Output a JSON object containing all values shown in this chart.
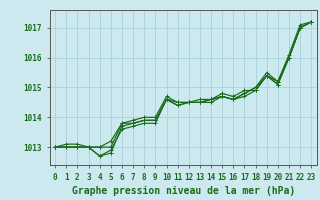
{
  "title": "Graphe pression niveau de la mer (hPa)",
  "xlabel": "Graphe pression niveau de la mer (hPa)",
  "x_ticks": [
    0,
    1,
    2,
    3,
    4,
    5,
    6,
    7,
    8,
    9,
    10,
    11,
    12,
    13,
    14,
    15,
    16,
    17,
    18,
    19,
    20,
    21,
    22,
    23
  ],
  "ylim": [
    1012.4,
    1017.6
  ],
  "yticks": [
    1013,
    1014,
    1015,
    1016,
    1017
  ],
  "xlim": [
    -0.5,
    23.5
  ],
  "bg_color": "#cce9f0",
  "grid_color": "#aed4dc",
  "line_color": "#1a6b1a",
  "marker_color": "#1a6b1a",
  "series": [
    [
      1013.0,
      1013.1,
      1013.1,
      1013.0,
      1012.7,
      1012.8,
      1013.7,
      1013.8,
      1013.9,
      1013.9,
      1014.6,
      1014.4,
      1014.5,
      1014.5,
      1014.6,
      1014.7,
      1014.6,
      1014.7,
      1014.9,
      1015.4,
      1015.1,
      1016.0,
      1017.0,
      1017.2
    ],
    [
      1013.0,
      1013.0,
      1013.0,
      1013.0,
      1013.0,
      1013.0,
      1013.8,
      1013.8,
      1013.9,
      1013.9,
      1014.6,
      1014.4,
      1014.5,
      1014.5,
      1014.6,
      1014.7,
      1014.6,
      1014.8,
      1015.0,
      1015.5,
      1015.2,
      1016.1,
      1017.1,
      1017.2
    ],
    [
      1013.0,
      1013.0,
      1013.0,
      1013.0,
      1013.0,
      1013.2,
      1013.8,
      1013.9,
      1014.0,
      1014.0,
      1014.7,
      1014.5,
      1014.5,
      1014.6,
      1014.6,
      1014.8,
      1014.7,
      1014.9,
      1014.9,
      1015.4,
      1015.2,
      1016.0,
      1017.0,
      1017.2
    ],
    [
      1013.0,
      1013.0,
      1013.0,
      1013.0,
      1012.7,
      1012.9,
      1013.6,
      1013.7,
      1013.8,
      1013.8,
      1014.6,
      1014.5,
      1014.5,
      1014.5,
      1014.5,
      1014.7,
      1014.6,
      1014.8,
      1015.0,
      1015.4,
      1015.1,
      1016.0,
      1017.0,
      1017.2
    ]
  ],
  "font_color": "#1a6b1a",
  "tick_fontsize": 5.5,
  "label_fontsize": 7.0
}
